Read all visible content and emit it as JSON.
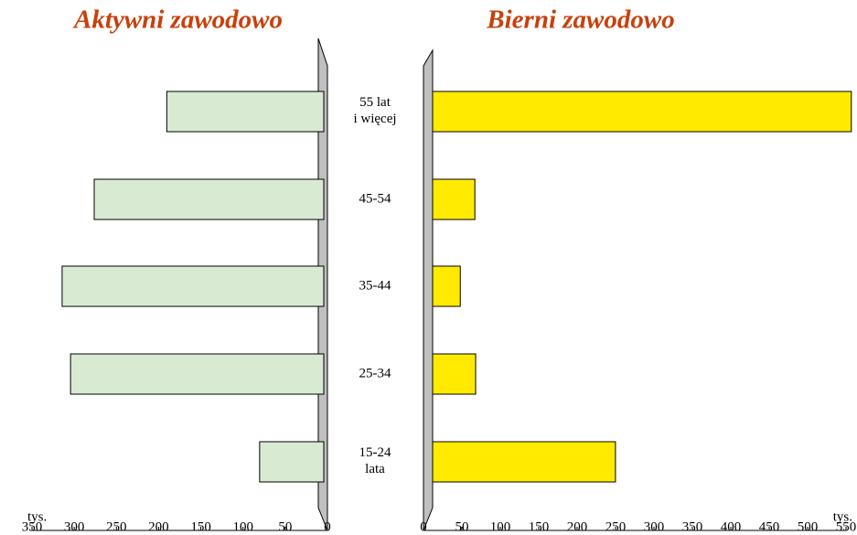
{
  "chart_data": [
    {
      "type": "bar",
      "title": "Aktywni zawodowo",
      "x_label": "tys.",
      "categories": [
        "55 lat\ni więcej",
        "45-54",
        "35-44",
        "25-34",
        "15-24\nlata"
      ],
      "values": [
        186,
        272,
        310,
        300,
        76
      ],
      "color": "#d9ead3",
      "xlim": [
        350,
        0
      ],
      "xticks": [
        350,
        300,
        250,
        200,
        150,
        100,
        50,
        0
      ]
    },
    {
      "type": "bar",
      "title": "Bierni zawodowo",
      "x_label": "tys.",
      "values": [
        545,
        55,
        36,
        56,
        238
      ],
      "color": "#ffea00",
      "xlim": [
        0,
        550
      ],
      "xticks": [
        0,
        50,
        100,
        150,
        200,
        250,
        300,
        350,
        400,
        450,
        500,
        550
      ]
    }
  ]
}
